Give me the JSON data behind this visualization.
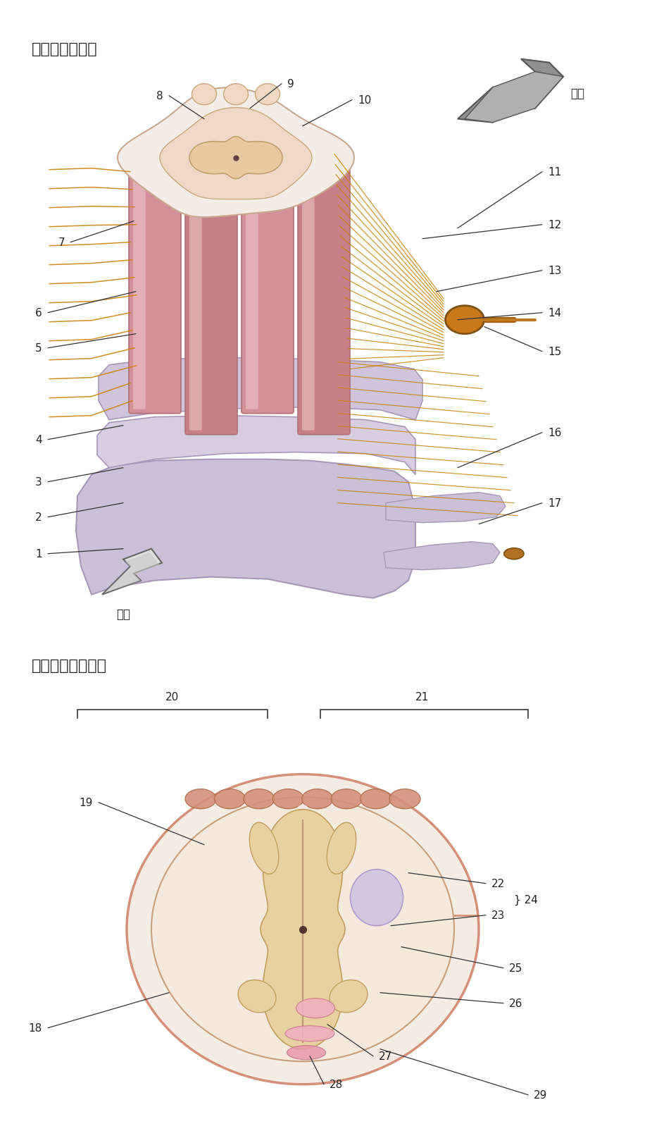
{
  "title1": "脊髓的腹外侧面",
  "title2": "脊髓的横切面解剖",
  "bg_color": "#ffffff",
  "dorsal_label": "背侧",
  "ventral_label": "腹侧",
  "cord_pink": "#d4909a",
  "cord_pink_light": "#e8b8bc",
  "cord_pink_mid": "#cc8890",
  "vertebra_lavender": "#c8bcd4",
  "vertebra_lavender_light": "#ddd0e4",
  "nerve_gold": "#c8820a",
  "nerve_gold_dark": "#a06010",
  "ganglion_color": "#c07818",
  "top_cross_color": "#f0d8c8",
  "top_cross_edge": "#c09880",
  "gray_matter_color": "#e8d4a8",
  "gray_matter_edge": "#c8a870",
  "white_matter_color": "#f5e8dc",
  "outer_ring_color": "#d4907a",
  "outer_ring_fill": "#f0c8b0",
  "pink_detail": "#f0b0c0",
  "purple_detail": "#c8c0dc",
  "bracket_color": "#555555"
}
